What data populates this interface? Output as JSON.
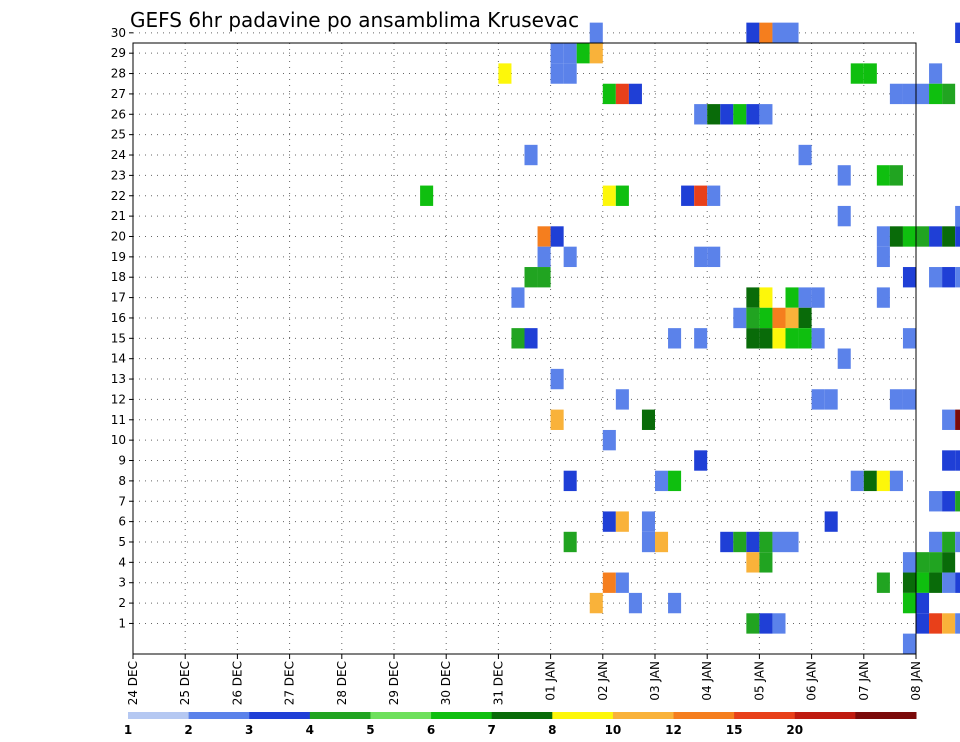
{
  "chart_data": {
    "type": "heatmap",
    "title": "GEFS 6hr padavine po ansamblima Krusevac",
    "y_ticks": [
      "1",
      "2",
      "3",
      "4",
      "5",
      "6",
      "7",
      "8",
      "9",
      "10",
      "11",
      "12",
      "13",
      "14",
      "15",
      "16",
      "17",
      "18",
      "19",
      "20",
      "21",
      "22",
      "23",
      "24",
      "25",
      "26",
      "27",
      "28",
      "29",
      "30"
    ],
    "x_ticks": [
      "24 DEC",
      "25 DEC",
      "26 DEC",
      "27 DEC",
      "28 DEC",
      "29 DEC",
      "30 DEC",
      "31 DEC",
      "01 JAN",
      "02 JAN",
      "03 JAN",
      "04 JAN",
      "05 JAN",
      "06 JAN",
      "07 JAN",
      "08 JAN"
    ],
    "grid": true,
    "time_step_hours": 6,
    "colorbar": {
      "labels": [
        "1",
        "2",
        "3",
        "4",
        "5",
        "6",
        "7",
        "8",
        "10",
        "12",
        "15",
        "20"
      ],
      "colors": [
        "#b5c8f2",
        "#5b82ea",
        "#1f3fd6",
        "#21a421",
        "#6ee05c",
        "#0fbf0f",
        "#096b09",
        "#fdf70a",
        "#f9b23a",
        "#f57e1e",
        "#e8401a",
        "#bf1b10",
        "#7a0a0a"
      ]
    },
    "cells": [
      {
        "member": 30,
        "day": 8.75,
        "level": 1
      },
      {
        "member": 30,
        "day": 11.75,
        "level": 2
      },
      {
        "member": 30,
        "day": 12.0,
        "level": 9
      },
      {
        "member": 30,
        "day": 12.25,
        "level": 1
      },
      {
        "member": 30,
        "day": 12.5,
        "level": 1
      },
      {
        "member": 30,
        "day": 15.75,
        "level": 2
      },
      {
        "member": 29,
        "day": 8.0,
        "level": 1
      },
      {
        "member": 29,
        "day": 8.25,
        "level": 1
      },
      {
        "member": 29,
        "day": 8.5,
        "level": 5
      },
      {
        "member": 29,
        "day": 8.75,
        "level": 8
      },
      {
        "member": 28,
        "day": 7.0,
        "level": 7
      },
      {
        "member": 28,
        "day": 8.0,
        "level": 1
      },
      {
        "member": 28,
        "day": 8.25,
        "level": 1
      },
      {
        "member": 28,
        "day": 13.75,
        "level": 5
      },
      {
        "member": 28,
        "day": 14.0,
        "level": 5
      },
      {
        "member": 28,
        "day": 15.25,
        "level": 1
      },
      {
        "member": 27,
        "day": 9.0,
        "level": 5
      },
      {
        "member": 27,
        "day": 9.25,
        "level": 10
      },
      {
        "member": 27,
        "day": 9.5,
        "level": 2
      },
      {
        "member": 27,
        "day": 14.5,
        "level": 1
      },
      {
        "member": 27,
        "day": 14.75,
        "level": 1
      },
      {
        "member": 27,
        "day": 15.0,
        "level": 1
      },
      {
        "member": 27,
        "day": 15.25,
        "level": 5
      },
      {
        "member": 27,
        "day": 15.5,
        "level": 3
      },
      {
        "member": 26,
        "day": 10.75,
        "level": 1
      },
      {
        "member": 26,
        "day": 11.0,
        "level": 6
      },
      {
        "member": 26,
        "day": 11.25,
        "level": 2
      },
      {
        "member": 26,
        "day": 11.5,
        "level": 5
      },
      {
        "member": 26,
        "day": 11.75,
        "level": 2
      },
      {
        "member": 26,
        "day": 12.0,
        "level": 1
      },
      {
        "member": 24,
        "day": 7.5,
        "level": 1
      },
      {
        "member": 24,
        "day": 12.75,
        "level": 1
      },
      {
        "member": 23,
        "day": 13.5,
        "level": 1
      },
      {
        "member": 23,
        "day": 14.25,
        "level": 5
      },
      {
        "member": 23,
        "day": 14.5,
        "level": 3
      },
      {
        "member": 22,
        "day": 5.5,
        "level": 5
      },
      {
        "member": 22,
        "day": 9.0,
        "level": 7
      },
      {
        "member": 22,
        "day": 9.25,
        "level": 5
      },
      {
        "member": 22,
        "day": 10.5,
        "level": 2
      },
      {
        "member": 22,
        "day": 10.75,
        "level": 10
      },
      {
        "member": 22,
        "day": 11.0,
        "level": 1
      },
      {
        "member": 21,
        "day": 13.5,
        "level": 1
      },
      {
        "member": 21,
        "day": 15.75,
        "level": 1
      },
      {
        "member": 20,
        "day": 7.75,
        "level": 9
      },
      {
        "member": 20,
        "day": 8.0,
        "level": 2
      },
      {
        "member": 20,
        "day": 14.25,
        "level": 1
      },
      {
        "member": 20,
        "day": 14.5,
        "level": 6
      },
      {
        "member": 20,
        "day": 14.75,
        "level": 5
      },
      {
        "member": 20,
        "day": 15.0,
        "level": 3
      },
      {
        "member": 20,
        "day": 15.25,
        "level": 2
      },
      {
        "member": 20,
        "day": 15.5,
        "level": 6
      },
      {
        "member": 20,
        "day": 15.75,
        "level": 2
      },
      {
        "member": 19,
        "day": 7.75,
        "level": 1
      },
      {
        "member": 19,
        "day": 8.25,
        "level": 1
      },
      {
        "member": 19,
        "day": 10.75,
        "level": 1
      },
      {
        "member": 19,
        "day": 11.0,
        "level": 1
      },
      {
        "member": 19,
        "day": 14.25,
        "level": 1
      },
      {
        "member": 18,
        "day": 7.5,
        "level": 3
      },
      {
        "member": 18,
        "day": 7.75,
        "level": 3
      },
      {
        "member": 18,
        "day": 14.75,
        "level": 2
      },
      {
        "member": 18,
        "day": 15.25,
        "level": 1
      },
      {
        "member": 18,
        "day": 15.5,
        "level": 2
      },
      {
        "member": 18,
        "day": 15.75,
        "level": 1
      },
      {
        "member": 17,
        "day": 7.25,
        "level": 1
      },
      {
        "member": 17,
        "day": 11.75,
        "level": 6
      },
      {
        "member": 17,
        "day": 12.0,
        "level": 7
      },
      {
        "member": 17,
        "day": 12.5,
        "level": 5
      },
      {
        "member": 17,
        "day": 12.75,
        "level": 1
      },
      {
        "member": 17,
        "day": 13.0,
        "level": 1
      },
      {
        "member": 17,
        "day": 14.25,
        "level": 1
      },
      {
        "member": 16,
        "day": 11.5,
        "level": 1
      },
      {
        "member": 16,
        "day": 11.75,
        "level": 3
      },
      {
        "member": 16,
        "day": 12.0,
        "level": 5
      },
      {
        "member": 16,
        "day": 12.25,
        "level": 9
      },
      {
        "member": 16,
        "day": 12.5,
        "level": 8
      },
      {
        "member": 16,
        "day": 12.75,
        "level": 6
      },
      {
        "member": 15,
        "day": 7.25,
        "level": 3
      },
      {
        "member": 15,
        "day": 7.5,
        "level": 2
      },
      {
        "member": 15,
        "day": 10.25,
        "level": 1
      },
      {
        "member": 15,
        "day": 10.75,
        "level": 1
      },
      {
        "member": 15,
        "day": 11.75,
        "level": 6
      },
      {
        "member": 15,
        "day": 12.0,
        "level": 6
      },
      {
        "member": 15,
        "day": 12.25,
        "level": 7
      },
      {
        "member": 15,
        "day": 12.5,
        "level": 5
      },
      {
        "member": 15,
        "day": 12.75,
        "level": 5
      },
      {
        "member": 15,
        "day": 13.0,
        "level": 1
      },
      {
        "member": 15,
        "day": 14.75,
        "level": 1
      },
      {
        "member": 14,
        "day": 13.5,
        "level": 1
      },
      {
        "member": 13,
        "day": 8.0,
        "level": 1
      },
      {
        "member": 12,
        "day": 9.25,
        "level": 1
      },
      {
        "member": 12,
        "day": 13.0,
        "level": 1
      },
      {
        "member": 12,
        "day": 13.25,
        "level": 1
      },
      {
        "member": 12,
        "day": 14.5,
        "level": 1
      },
      {
        "member": 12,
        "day": 14.75,
        "level": 1
      },
      {
        "member": 11,
        "day": 8.0,
        "level": 8
      },
      {
        "member": 11,
        "day": 9.75,
        "level": 6
      },
      {
        "member": 11,
        "day": 15.5,
        "level": 1
      },
      {
        "member": 11,
        "day": 15.75,
        "level": 12
      },
      {
        "member": 10,
        "day": 9.0,
        "level": 1
      },
      {
        "member": 9,
        "day": 10.75,
        "level": 2
      },
      {
        "member": 9,
        "day": 15.5,
        "level": 2
      },
      {
        "member": 9,
        "day": 15.75,
        "level": 2
      },
      {
        "member": 8,
        "day": 8.25,
        "level": 2
      },
      {
        "member": 8,
        "day": 10.0,
        "level": 1
      },
      {
        "member": 8,
        "day": 10.25,
        "level": 5
      },
      {
        "member": 8,
        "day": 13.75,
        "level": 1
      },
      {
        "member": 8,
        "day": 14.0,
        "level": 6
      },
      {
        "member": 8,
        "day": 14.25,
        "level": 7
      },
      {
        "member": 8,
        "day": 14.5,
        "level": 1
      },
      {
        "member": 7,
        "day": 15.25,
        "level": 1
      },
      {
        "member": 7,
        "day": 15.5,
        "level": 2
      },
      {
        "member": 7,
        "day": 15.75,
        "level": 3
      },
      {
        "member": 6,
        "day": 9.0,
        "level": 2
      },
      {
        "member": 6,
        "day": 9.25,
        "level": 8
      },
      {
        "member": 6,
        "day": 9.75,
        "level": 1
      },
      {
        "member": 6,
        "day": 13.25,
        "level": 2
      },
      {
        "member": 5,
        "day": 8.25,
        "level": 3
      },
      {
        "member": 5,
        "day": 9.75,
        "level": 1
      },
      {
        "member": 5,
        "day": 10.0,
        "level": 8
      },
      {
        "member": 5,
        "day": 11.25,
        "level": 2
      },
      {
        "member": 5,
        "day": 11.5,
        "level": 3
      },
      {
        "member": 5,
        "day": 11.75,
        "level": 2
      },
      {
        "member": 5,
        "day": 12.0,
        "level": 3
      },
      {
        "member": 5,
        "day": 12.25,
        "level": 1
      },
      {
        "member": 5,
        "day": 12.5,
        "level": 1
      },
      {
        "member": 5,
        "day": 15.25,
        "level": 1
      },
      {
        "member": 5,
        "day": 15.5,
        "level": 3
      },
      {
        "member": 5,
        "day": 15.75,
        "level": 1
      },
      {
        "member": 4,
        "day": 11.75,
        "level": 8
      },
      {
        "member": 4,
        "day": 12.0,
        "level": 3
      },
      {
        "member": 4,
        "day": 14.75,
        "level": 1
      },
      {
        "member": 4,
        "day": 15.0,
        "level": 3
      },
      {
        "member": 4,
        "day": 15.25,
        "level": 3
      },
      {
        "member": 4,
        "day": 15.5,
        "level": 6
      },
      {
        "member": 3,
        "day": 9.0,
        "level": 9
      },
      {
        "member": 3,
        "day": 9.25,
        "level": 1
      },
      {
        "member": 3,
        "day": 14.25,
        "level": 3
      },
      {
        "member": 3,
        "day": 14.75,
        "level": 6
      },
      {
        "member": 3,
        "day": 15.0,
        "level": 5
      },
      {
        "member": 3,
        "day": 15.25,
        "level": 6
      },
      {
        "member": 3,
        "day": 15.5,
        "level": 1
      },
      {
        "member": 3,
        "day": 15.75,
        "level": 2
      },
      {
        "member": 2,
        "day": 8.75,
        "level": 8
      },
      {
        "member": 2,
        "day": 9.5,
        "level": 1
      },
      {
        "member": 2,
        "day": 10.25,
        "level": 1
      },
      {
        "member": 2,
        "day": 14.75,
        "level": 5
      },
      {
        "member": 2,
        "day": 15.0,
        "level": 2
      },
      {
        "member": 1,
        "day": 11.75,
        "level": 3
      },
      {
        "member": 1,
        "day": 12.0,
        "level": 2
      },
      {
        "member": 1,
        "day": 12.25,
        "level": 1
      },
      {
        "member": 1,
        "day": 15.0,
        "level": 2
      },
      {
        "member": 1,
        "day": 15.25,
        "level": 10
      },
      {
        "member": 1,
        "day": 15.5,
        "level": 8
      },
      {
        "member": 1,
        "day": 15.75,
        "level": 1
      },
      {
        "member": 0,
        "day": 14.75,
        "level": 1
      }
    ]
  }
}
